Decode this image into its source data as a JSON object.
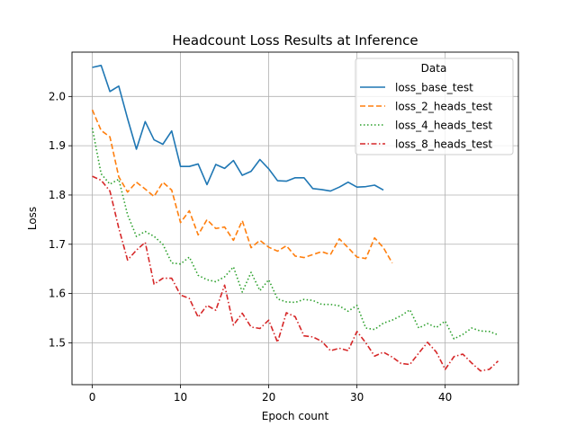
{
  "chart_data": {
    "type": "line",
    "title": "Headcount Loss Results at Inference",
    "xlabel": "Epoch count",
    "ylabel": "Loss",
    "xlim": [
      -2.3,
      48.3
    ],
    "ylim": [
      1.415,
      2.09
    ],
    "xticks": [
      0,
      10,
      20,
      30,
      40
    ],
    "yticks": [
      1.5,
      1.6,
      1.7,
      1.8,
      1.9,
      2.0
    ],
    "grid": true,
    "legend": {
      "title": "Data",
      "placement": "top-right"
    },
    "series": [
      {
        "name": "loss_base_test",
        "color": "#1f77b4",
        "dash": "solid",
        "x": [
          0,
          1,
          2,
          3,
          4,
          5,
          6,
          7,
          8,
          9,
          10,
          11,
          12,
          13,
          14,
          15,
          16,
          17,
          18,
          19,
          20,
          21,
          22,
          23,
          24,
          25,
          26,
          27,
          28,
          29,
          30,
          31,
          32,
          33
        ],
        "values": [
          2.059,
          2.063,
          2.01,
          2.021,
          1.955,
          1.893,
          1.949,
          1.912,
          1.903,
          1.93,
          1.858,
          1.858,
          1.863,
          1.821,
          1.862,
          1.854,
          1.87,
          1.84,
          1.848,
          1.872,
          1.853,
          1.829,
          1.828,
          1.835,
          1.835,
          1.813,
          1.811,
          1.808,
          1.816,
          1.826,
          1.816,
          1.817,
          1.82,
          1.81
        ]
      },
      {
        "name": "loss_2_heads_test",
        "color": "#ff7f0e",
        "dash": "dashed",
        "x": [
          0,
          1,
          2,
          3,
          4,
          5,
          6,
          7,
          8,
          9,
          10,
          11,
          12,
          13,
          14,
          15,
          16,
          17,
          18,
          19,
          20,
          21,
          22,
          23,
          24,
          25,
          26,
          27,
          28,
          29,
          30,
          31,
          32,
          33,
          34
        ],
        "values": [
          1.973,
          1.931,
          1.918,
          1.837,
          1.806,
          1.826,
          1.812,
          1.797,
          1.826,
          1.81,
          1.744,
          1.768,
          1.719,
          1.75,
          1.732,
          1.735,
          1.708,
          1.748,
          1.693,
          1.708,
          1.694,
          1.686,
          1.697,
          1.676,
          1.673,
          1.679,
          1.685,
          1.679,
          1.711,
          1.693,
          1.674,
          1.671,
          1.713,
          1.693,
          1.662
        ]
      },
      {
        "name": "loss_4_heads_test",
        "color": "#2ca02c",
        "dash": "dotted",
        "x": [
          0,
          1,
          2,
          3,
          4,
          5,
          6,
          7,
          8,
          9,
          10,
          11,
          12,
          13,
          14,
          15,
          16,
          17,
          18,
          19,
          20,
          21,
          22,
          23,
          24,
          25,
          26,
          27,
          28,
          29,
          30,
          31,
          32,
          33,
          34,
          35,
          36,
          37,
          38,
          39,
          40,
          41,
          42,
          43,
          44,
          45,
          46
        ],
        "values": [
          1.936,
          1.843,
          1.822,
          1.832,
          1.76,
          1.716,
          1.726,
          1.716,
          1.7,
          1.662,
          1.66,
          1.674,
          1.637,
          1.628,
          1.624,
          1.634,
          1.654,
          1.603,
          1.643,
          1.606,
          1.628,
          1.589,
          1.583,
          1.582,
          1.588,
          1.586,
          1.578,
          1.578,
          1.575,
          1.564,
          1.576,
          1.53,
          1.527,
          1.54,
          1.546,
          1.555,
          1.567,
          1.53,
          1.539,
          1.531,
          1.544,
          1.508,
          1.517,
          1.53,
          1.524,
          1.523,
          1.516
        ]
      },
      {
        "name": "loss_8_heads_test",
        "color": "#d62728",
        "dash": "dashdot",
        "x": [
          0,
          1,
          2,
          3,
          4,
          5,
          6,
          7,
          8,
          9,
          10,
          11,
          12,
          13,
          14,
          15,
          16,
          17,
          18,
          19,
          20,
          21,
          22,
          23,
          24,
          25,
          26,
          27,
          28,
          29,
          30,
          31,
          32,
          33,
          34,
          35,
          36,
          37,
          38,
          39,
          40,
          41,
          42,
          43,
          44,
          45,
          46
        ],
        "values": [
          1.838,
          1.83,
          1.808,
          1.733,
          1.668,
          1.688,
          1.704,
          1.619,
          1.631,
          1.631,
          1.597,
          1.59,
          1.552,
          1.576,
          1.566,
          1.617,
          1.536,
          1.56,
          1.532,
          1.529,
          1.546,
          1.501,
          1.561,
          1.553,
          1.514,
          1.512,
          1.503,
          1.484,
          1.489,
          1.484,
          1.523,
          1.5,
          1.473,
          1.481,
          1.471,
          1.458,
          1.456,
          1.479,
          1.501,
          1.481,
          1.446,
          1.472,
          1.477,
          1.459,
          1.443,
          1.446,
          1.463
        ]
      }
    ]
  }
}
